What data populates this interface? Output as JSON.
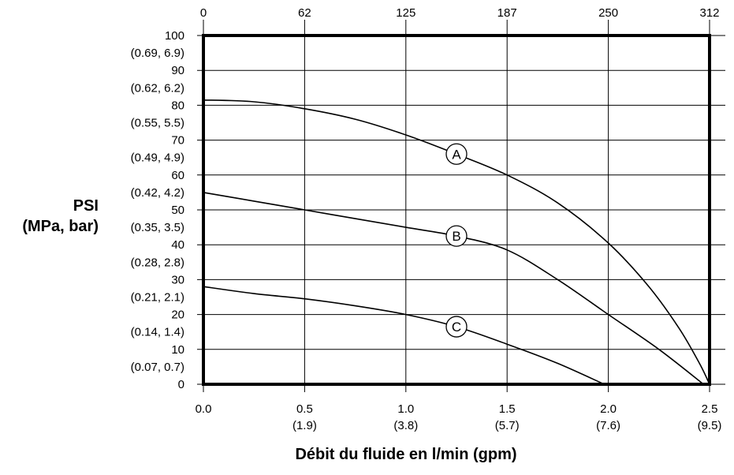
{
  "chart_data": {
    "type": "line",
    "ylabel": "PSI",
    "ylabel2": "(MPa, bar)",
    "xlabel": "Débit du fluide en l/min (gpm)",
    "xlim": [
      0,
      2.5
    ],
    "ylim": [
      0,
      100
    ],
    "grid": true,
    "x_ticks_bottom": [
      {
        "value": 0,
        "label": "0.0",
        "sub": ""
      },
      {
        "value": 0.5,
        "label": "0.5",
        "sub": "(1.9)"
      },
      {
        "value": 1.0,
        "label": "1.0",
        "sub": "(3.8)"
      },
      {
        "value": 1.5,
        "label": "1.5",
        "sub": "(5.7)"
      },
      {
        "value": 2.0,
        "label": "2.0",
        "sub": "(7.6)"
      },
      {
        "value": 2.5,
        "label": "2.5",
        "sub": "(9.5)"
      }
    ],
    "x_ticks_top": [
      {
        "value": 0,
        "label": "0"
      },
      {
        "value": 0.5,
        "label": "62"
      },
      {
        "value": 1.0,
        "label": "125"
      },
      {
        "value": 1.5,
        "label": "187"
      },
      {
        "value": 2.0,
        "label": "250"
      },
      {
        "value": 2.5,
        "label": "312"
      }
    ],
    "y_ticks": [
      {
        "value": 100,
        "label": "100"
      },
      {
        "value": 95,
        "label": "(0.69, 6.9)"
      },
      {
        "value": 90,
        "label": "90"
      },
      {
        "value": 85,
        "label": "(0.62, 6.2)"
      },
      {
        "value": 80,
        "label": "80"
      },
      {
        "value": 75,
        "label": "(0.55, 5.5)"
      },
      {
        "value": 70,
        "label": "70"
      },
      {
        "value": 65,
        "label": "(0.49, 4.9)"
      },
      {
        "value": 60,
        "label": "60"
      },
      {
        "value": 55,
        "label": "(0.42, 4.2)"
      },
      {
        "value": 50,
        "label": "50"
      },
      {
        "value": 45,
        "label": "(0.35, 3.5)"
      },
      {
        "value": 40,
        "label": "40"
      },
      {
        "value": 35,
        "label": "(0.28, 2.8)"
      },
      {
        "value": 30,
        "label": "30"
      },
      {
        "value": 25,
        "label": "(0.21, 2.1)"
      },
      {
        "value": 20,
        "label": "20"
      },
      {
        "value": 15,
        "label": "(0.14, 1.4)"
      },
      {
        "value": 10,
        "label": "10"
      },
      {
        "value": 5,
        "label": "(0.07, 0.7)"
      },
      {
        "value": 0,
        "label": "0"
      }
    ],
    "series": [
      {
        "name": "A",
        "x": [
          0,
          0.25,
          0.5,
          0.75,
          1.0,
          1.25,
          1.5,
          1.75,
          2.0,
          2.2,
          2.35,
          2.45,
          2.5
        ],
        "y": [
          81.5,
          81,
          79,
          76,
          71.5,
          66,
          60,
          52,
          40.5,
          28,
          16,
          6,
          0
        ],
        "label_at": [
          1.25,
          66
        ]
      },
      {
        "name": "B",
        "x": [
          0,
          0.25,
          0.5,
          0.75,
          1.0,
          1.25,
          1.5,
          1.75,
          2.0,
          2.25,
          2.47
        ],
        "y": [
          55,
          52.5,
          50,
          47.5,
          45,
          42.5,
          38.5,
          30,
          20,
          10,
          0
        ],
        "label_at": [
          1.25,
          42.5
        ]
      },
      {
        "name": "C",
        "x": [
          0,
          0.25,
          0.5,
          0.75,
          1.0,
          1.25,
          1.5,
          1.75,
          1.98
        ],
        "y": [
          28,
          26,
          24.5,
          22.5,
          20,
          16.5,
          11.5,
          6,
          0
        ],
        "label_at": [
          1.25,
          16.5
        ]
      }
    ]
  }
}
